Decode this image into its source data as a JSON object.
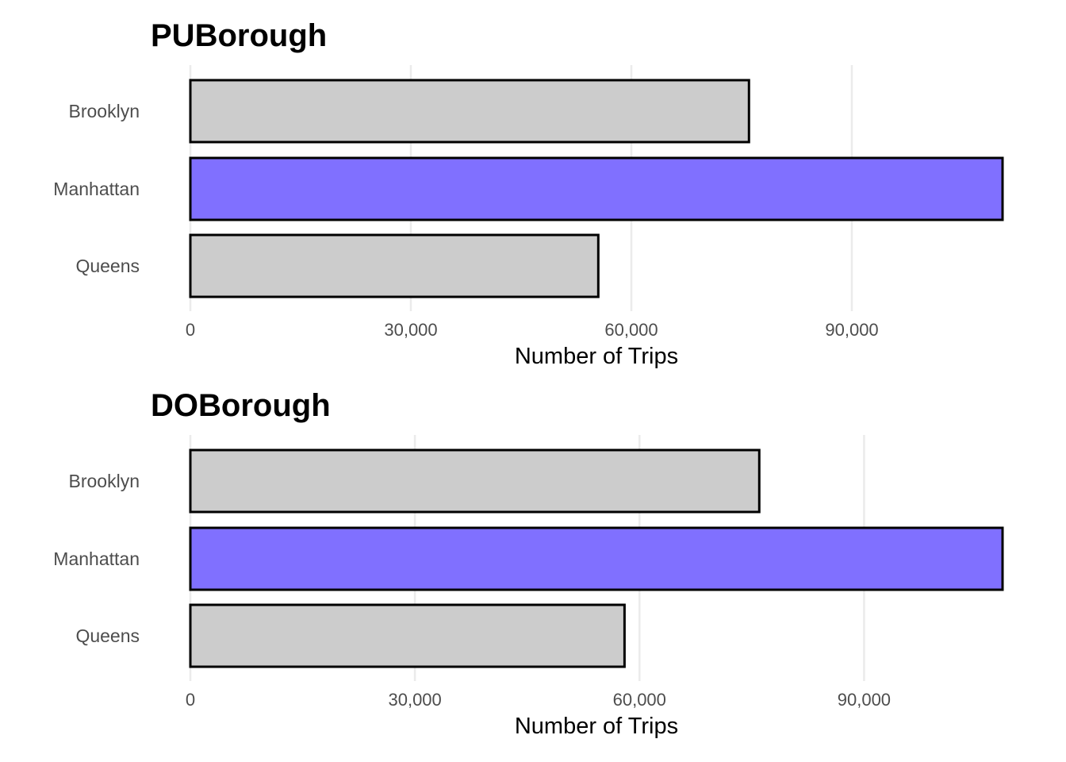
{
  "chart_data": [
    {
      "type": "bar",
      "orientation": "horizontal",
      "title": "PUBorough",
      "xlabel": "Number of Trips",
      "ylabel": "",
      "categories": [
        "Brooklyn",
        "Manhattan",
        "Queens"
      ],
      "values": [
        76000,
        110500,
        55500
      ],
      "xlim": [
        0,
        110500
      ],
      "xticks": [
        0,
        30000,
        60000,
        90000
      ],
      "xtick_labels": [
        "0",
        "30,000",
        "60,000",
        "90,000"
      ],
      "grid": true,
      "colors": {
        "Brooklyn": "#cccccc",
        "Manhattan": "#8070ff",
        "Queens": "#cccccc"
      }
    },
    {
      "type": "bar",
      "orientation": "horizontal",
      "title": "DOBorough",
      "xlabel": "Number of Trips",
      "ylabel": "",
      "categories": [
        "Brooklyn",
        "Manhattan",
        "Queens"
      ],
      "values": [
        76000,
        108500,
        58000
      ],
      "xlim": [
        0,
        108500
      ],
      "xticks": [
        0,
        30000,
        60000,
        90000
      ],
      "xtick_labels": [
        "0",
        "30,000",
        "60,000",
        "90,000"
      ],
      "grid": true,
      "colors": {
        "Brooklyn": "#cccccc",
        "Manhattan": "#8070ff",
        "Queens": "#cccccc"
      }
    }
  ]
}
